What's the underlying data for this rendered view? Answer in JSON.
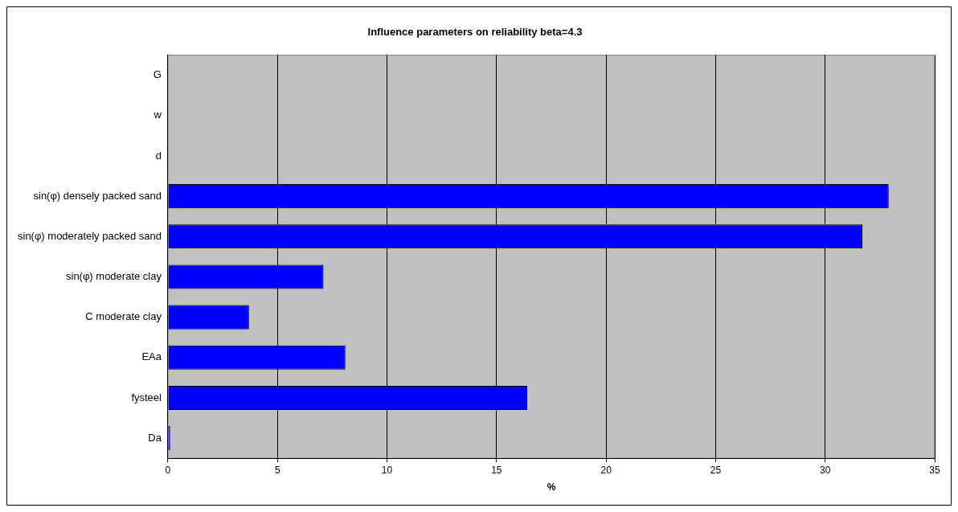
{
  "chart_data": {
    "type": "bar",
    "orientation": "horizontal",
    "title": "Influence parameters on reliability beta=4.3",
    "xlabel": "%",
    "categories": [
      "G",
      "w",
      "d",
      "sin(φ) densely packed sand",
      "sin(φ) moderately packed sand",
      "sin(φ) moderate clay",
      "C moderate clay",
      "EAa",
      "fysteel",
      "Da"
    ],
    "values": [
      0,
      0,
      0,
      32.9,
      31.7,
      7.1,
      3.7,
      8.1,
      16.4,
      0.1
    ],
    "color": "#0000ff",
    "xlim": [
      0,
      35
    ],
    "xticks": [
      0,
      5,
      10,
      15,
      20,
      25,
      30,
      35
    ],
    "grid": "x",
    "legend": false
  }
}
